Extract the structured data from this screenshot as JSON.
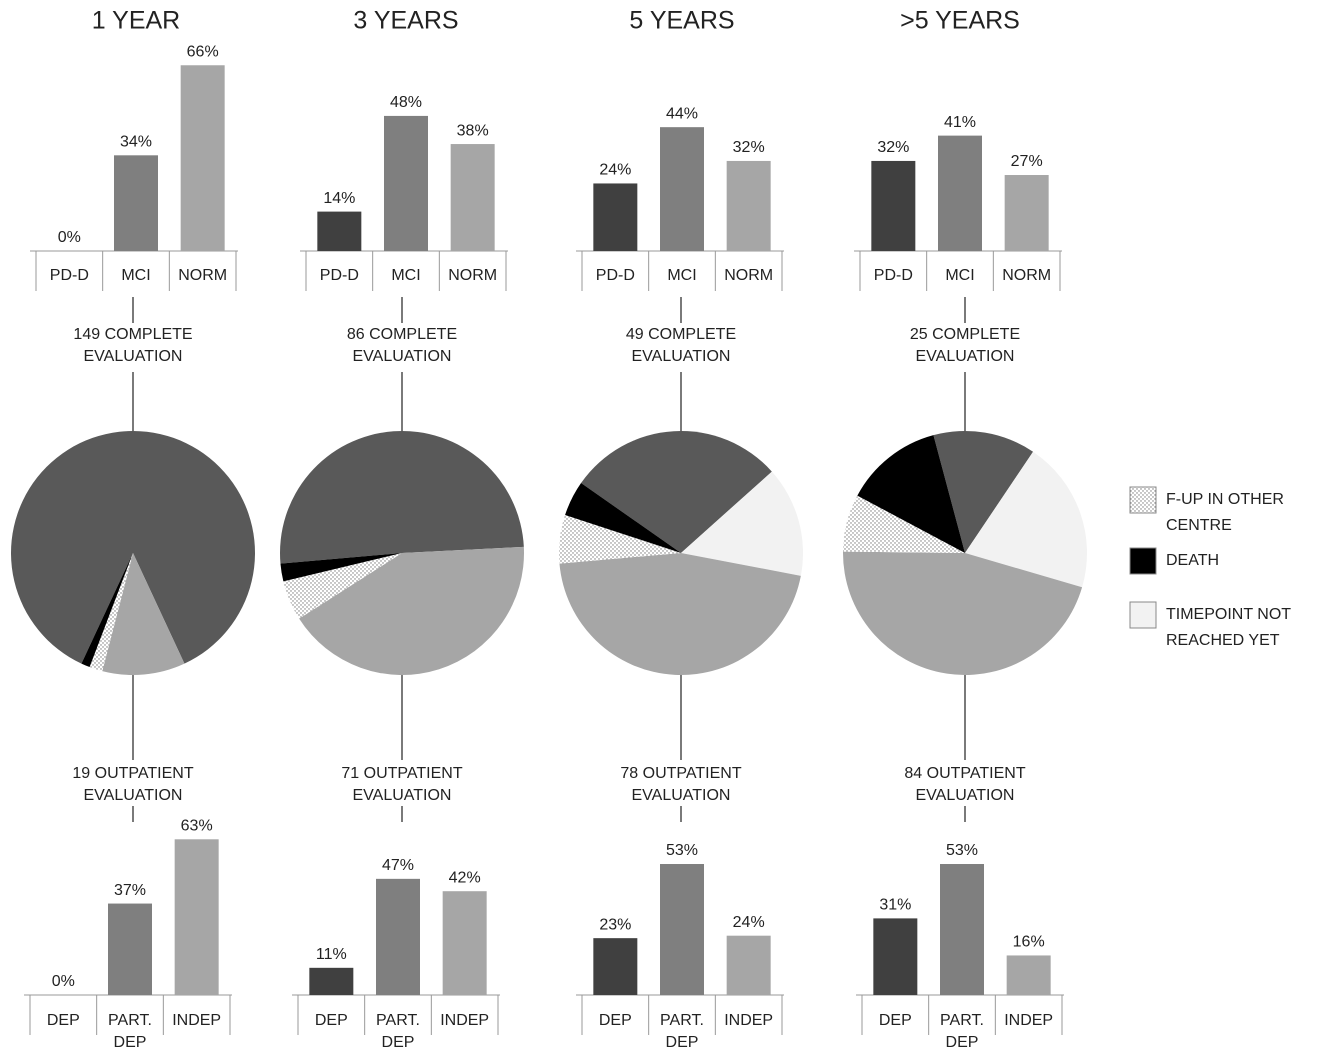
{
  "chart_data": [
    {
      "type": "bar",
      "title": "1 YEAR",
      "categories": [
        "PD-D",
        "MCI",
        "NORM"
      ],
      "values": [
        0,
        34,
        66
      ],
      "value_labels": [
        "0%",
        "34%",
        "66%"
      ],
      "colors": [
        "#404040",
        "#7f7f7f",
        "#a6a6a6"
      ],
      "ylim": [
        0,
        70
      ]
    },
    {
      "type": "pie",
      "values": [
        149,
        0,
        19,
        3,
        2
      ],
      "colors": [
        "#595959",
        "#f2f2f2",
        "#a6a6a6",
        "dotted",
        "#000000"
      ],
      "startangle": -155,
      "annotations": [
        "149 COMPLETE EVALUATION",
        "19 OUTPATIENT EVALUATION"
      ]
    },
    {
      "type": "bar",
      "categories": [
        "DEP",
        "PART. DEP",
        "INDEP"
      ],
      "values": [
        0,
        37,
        63
      ],
      "value_labels": [
        "0%",
        "37%",
        "63%"
      ],
      "colors": [
        "#404040",
        "#7f7f7f",
        "#a6a6a6"
      ],
      "ylim": [
        0,
        70
      ]
    },
    {
      "type": "bar",
      "title": "3 YEARS",
      "categories": [
        "PD-D",
        "MCI",
        "NORM"
      ],
      "values": [
        14,
        48,
        38
      ],
      "value_labels": [
        "14%",
        "48%",
        "38%"
      ],
      "colors": [
        "#404040",
        "#7f7f7f",
        "#a6a6a6"
      ],
      "ylim": [
        0,
        70
      ]
    },
    {
      "type": "pie",
      "values": [
        86,
        0,
        71,
        9,
        4
      ],
      "colors": [
        "#595959",
        "#f2f2f2",
        "#a6a6a6",
        "dotted",
        "#000000"
      ],
      "startangle": -95,
      "annotations": [
        "86 COMPLETE EVALUATION",
        "71 OUTPATIENT EVALUATION"
      ]
    },
    {
      "type": "bar",
      "categories": [
        "DEP",
        "PART. DEP",
        "INDEP"
      ],
      "values": [
        11,
        47,
        42
      ],
      "value_labels": [
        "11%",
        "47%",
        "42%"
      ],
      "colors": [
        "#404040",
        "#7f7f7f",
        "#a6a6a6"
      ],
      "ylim": [
        0,
        70
      ]
    },
    {
      "type": "bar",
      "title": "5 YEARS",
      "categories": [
        "PD-D",
        "MCI",
        "NORM"
      ],
      "values": [
        24,
        44,
        32
      ],
      "value_labels": [
        "24%",
        "44%",
        "32%"
      ],
      "colors": [
        "#404040",
        "#7f7f7f",
        "#a6a6a6"
      ],
      "ylim": [
        0,
        70
      ]
    },
    {
      "type": "pie",
      "values": [
        49,
        25,
        78,
        11,
        8
      ],
      "colors": [
        "#595959",
        "#f2f2f2",
        "#a6a6a6",
        "dotted",
        "#000000"
      ],
      "startangle": -55,
      "annotations": [
        "49 COMPLETE EVALUATION",
        "78 OUTPATIENT EVALUATION"
      ]
    },
    {
      "type": "bar",
      "categories": [
        "DEP",
        "PART. DEP",
        "INDEP"
      ],
      "values": [
        23,
        53,
        24
      ],
      "value_labels": [
        "23%",
        "53%",
        "24%"
      ],
      "colors": [
        "#404040",
        "#7f7f7f",
        "#a6a6a6"
      ],
      "ylim": [
        0,
        70
      ]
    },
    {
      "type": "bar",
      "title": ">5 YEARS",
      "categories": [
        "PD-D",
        "MCI",
        "NORM"
      ],
      "values": [
        32,
        41,
        27
      ],
      "value_labels": [
        "32%",
        "41%",
        "27%"
      ],
      "colors": [
        "#404040",
        "#7f7f7f",
        "#a6a6a6"
      ],
      "ylim": [
        0,
        70
      ]
    },
    {
      "type": "pie",
      "values": [
        25,
        37,
        84,
        14,
        24
      ],
      "colors": [
        "#595959",
        "#f2f2f2",
        "#a6a6a6",
        "dotted",
        "#000000"
      ],
      "startangle": -15,
      "annotations": [
        "25 COMPLETE EVALUATION",
        "84 OUTPATIENT EVALUATION"
      ]
    },
    {
      "type": "bar",
      "categories": [
        "DEP",
        "PART. DEP",
        "INDEP"
      ],
      "values": [
        31,
        53,
        16
      ],
      "value_labels": [
        "31%",
        "53%",
        "16%"
      ],
      "colors": [
        "#404040",
        "#7f7f7f",
        "#a6a6a6"
      ],
      "ylim": [
        0,
        70
      ]
    }
  ],
  "legend": [
    {
      "name": "F-UP IN OTHER CENTRE",
      "color": "dotted"
    },
    {
      "name": "DEATH",
      "color": "#000000"
    },
    {
      "name": "TIMEPOINT NOT REACHED YET",
      "color": "#f2f2f2"
    }
  ]
}
